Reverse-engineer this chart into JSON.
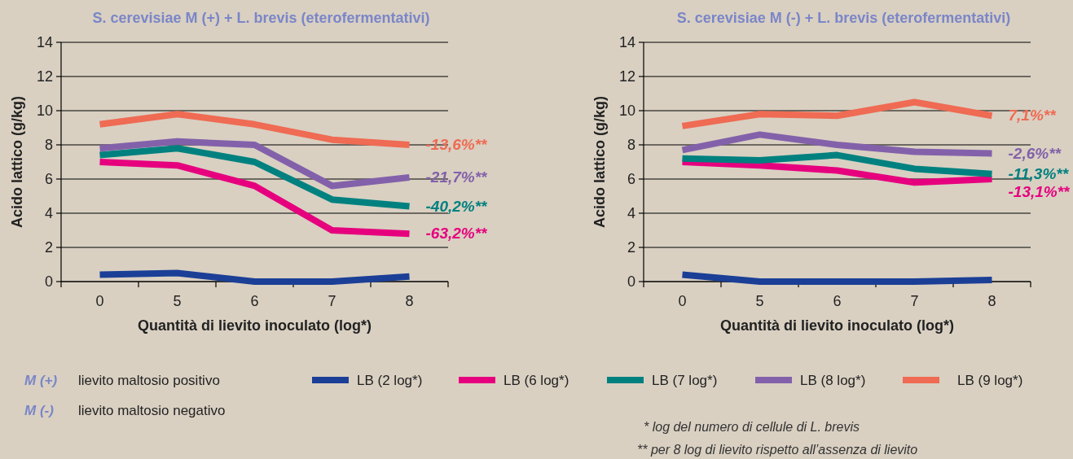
{
  "chart_data": [
    {
      "type": "line",
      "title": "S. cerevisiae M (+) + L. brevis (eterofermentativi)",
      "xlabel": "Quantità di lievito inoculato (log*)",
      "ylabel": "Acido lattico (g/kg)",
      "categories": [
        "0",
        "5",
        "6",
        "7",
        "8"
      ],
      "ylim": [
        0,
        14
      ],
      "yticks": [
        0,
        2,
        4,
        6,
        8,
        10,
        12,
        14
      ],
      "grid": "y",
      "legend": "bottom",
      "marker": "none",
      "line_style": "solid",
      "series": [
        {
          "name": "LB (2 log*)",
          "color": "#1b3f96",
          "values": [
            0.4,
            0.5,
            0.0,
            0.0,
            0.3
          ]
        },
        {
          "name": "LB (6 log*)",
          "color": "#e6007e",
          "values": [
            7.0,
            6.8,
            5.6,
            3.0,
            2.8
          ]
        },
        {
          "name": "LB (7 log*)",
          "color": "#00817f",
          "values": [
            7.4,
            7.8,
            7.0,
            4.8,
            4.4
          ]
        },
        {
          "name": "LB (8 log*)",
          "color": "#8361aa",
          "values": [
            7.8,
            8.2,
            8.0,
            5.6,
            6.1
          ]
        },
        {
          "name": "LB (9 log*)",
          "color": "#ef6b53",
          "values": [
            9.2,
            9.8,
            9.2,
            8.3,
            8.0
          ]
        }
      ],
      "annotations": [
        {
          "text": "-13,6%**",
          "x": "8",
          "y": 8.0
        },
        {
          "text": "-21,7%**",
          "x": "8",
          "y": 6.1
        },
        {
          "text": "-40,2%**",
          "x": "8",
          "y": 4.4
        },
        {
          "text": "-63,2%**",
          "x": "8",
          "y": 2.8
        },
        "M (+)",
        "lievito maltosio positivo",
        "M (-)",
        "lievito maltosio negativo",
        "* log del numero di cellule di L. brevis",
        "** per 8 log di lievito rispetto all’assenza di lievito"
      ]
    },
    {
      "type": "line",
      "title": "S. cerevisiae M (-) + L. brevis (eterofermentativi)",
      "xlabel": "Quantità di lievito inoculato (log*)",
      "ylabel": "Acido lattico (g/kg)",
      "categories": [
        "0",
        "5",
        "6",
        "7",
        "8"
      ],
      "ylim": [
        0,
        14
      ],
      "yticks": [
        0,
        2,
        4,
        6,
        8,
        10,
        12,
        14
      ],
      "grid": "y",
      "marker": "none",
      "line_style": "solid",
      "series": [
        {
          "color": "#1b3f96",
          "values": [
            0.4,
            0.0,
            0.0,
            0.0,
            0.1
          ]
        },
        {
          "color": "#e6007e",
          "values": [
            7.0,
            6.8,
            6.5,
            5.8,
            6.0
          ]
        },
        {
          "color": "#00817f",
          "values": [
            7.2,
            7.1,
            7.4,
            6.6,
            6.3
          ]
        },
        {
          "color": "#8361aa",
          "values": [
            7.7,
            8.6,
            8.0,
            7.6,
            7.5
          ]
        },
        {
          "color": "#ef6b53",
          "values": [
            9.1,
            9.8,
            9.7,
            10.5,
            9.7
          ]
        }
      ],
      "annotations": [
        {
          "text": "7,1%**",
          "x": "8",
          "y": 9.7
        },
        {
          "text": "-2,6%**",
          "x": "8",
          "y": 7.5
        },
        {
          "text": "-11,3%**",
          "x": "8",
          "y": 6.3
        },
        {
          "text": "-13,1%**",
          "x": "8",
          "y": 6.0
        }
      ]
    }
  ]
}
